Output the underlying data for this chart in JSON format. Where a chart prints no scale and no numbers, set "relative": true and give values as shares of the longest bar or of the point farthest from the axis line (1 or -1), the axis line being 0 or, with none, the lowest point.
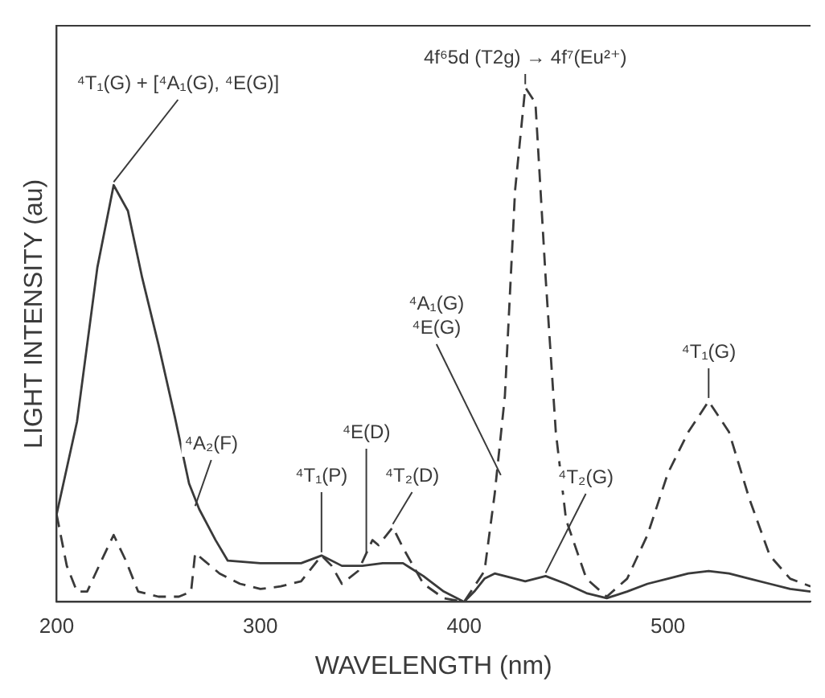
{
  "chart_data": {
    "type": "line",
    "xlabel": "WAVELENGTH (nm)",
    "ylabel": "LIGHT INTENSITY (au)",
    "relative": true,
    "xlim": [
      200,
      570
    ],
    "xticks": [
      200,
      300,
      400,
      500
    ],
    "grid": false,
    "legend": false,
    "marker": "none",
    "series": [
      {
        "color": "#3a3a3a",
        "line_style": "solid",
        "x": [
          200,
          210,
          220,
          228,
          235,
          242,
          250,
          258,
          265,
          270,
          278,
          284,
          300,
          320,
          330,
          340,
          350,
          360,
          370,
          380,
          390,
          400,
          405,
          410,
          415,
          420,
          430,
          440,
          450,
          460,
          470,
          480,
          490,
          500,
          510,
          520,
          530,
          540,
          550,
          560,
          570
        ],
        "values": [
          0.17,
          0.35,
          0.65,
          0.81,
          0.76,
          0.63,
          0.5,
          0.36,
          0.23,
          0.18,
          0.12,
          0.08,
          0.075,
          0.075,
          0.09,
          0.07,
          0.07,
          0.075,
          0.075,
          0.05,
          0.02,
          0.0,
          0.02,
          0.045,
          0.055,
          0.05,
          0.04,
          0.05,
          0.035,
          0.017,
          0.007,
          0.02,
          0.035,
          0.045,
          0.055,
          0.06,
          0.055,
          0.045,
          0.035,
          0.025,
          0.02
        ]
      },
      {
        "color": "#3a3a3a",
        "line_style": "dashed",
        "x": [
          200,
          205,
          210,
          215,
          222,
          228,
          234,
          240,
          250,
          260,
          266,
          268,
          280,
          290,
          300,
          310,
          320,
          330,
          335,
          340,
          348,
          355,
          358,
          365,
          370,
          380,
          390,
          400,
          410,
          415,
          420,
          425,
          430,
          435,
          440,
          445,
          450,
          460,
          470,
          480,
          490,
          500,
          510,
          520,
          530,
          540,
          550,
          560,
          570
        ],
        "values": [
          0.17,
          0.07,
          0.02,
          0.02,
          0.08,
          0.13,
          0.08,
          0.02,
          0.01,
          0.01,
          0.02,
          0.095,
          0.055,
          0.035,
          0.025,
          0.03,
          0.04,
          0.09,
          0.07,
          0.035,
          0.06,
          0.12,
          0.11,
          0.145,
          0.105,
          0.035,
          0.007,
          0.0,
          0.06,
          0.21,
          0.4,
          0.8,
          1.0,
          0.97,
          0.63,
          0.33,
          0.16,
          0.045,
          0.01,
          0.045,
          0.13,
          0.25,
          0.33,
          0.39,
          0.33,
          0.2,
          0.09,
          0.045,
          0.03
        ]
      }
    ],
    "annotations": [
      {
        "text": "⁴T₁(G) + [⁴A₁(G), ⁴E(G)]",
        "x": 228,
        "y": 0.81
      },
      {
        "text": "⁴A₂(F)",
        "x": 268,
        "y": 0.18
      },
      {
        "text": "⁴T₁(P)",
        "x": 330,
        "y": 0.09
      },
      {
        "text": "⁴E(D)",
        "x": 352,
        "y": 0.09
      },
      {
        "text": "⁴T₂(D)",
        "x": 365,
        "y": 0.145
      },
      {
        "text": "⁴A₁(G)\n⁴E(G)",
        "x": 418,
        "y": 0.24
      },
      {
        "text": "⁴T₂(G)",
        "x": 440,
        "y": 0.05
      },
      {
        "text": "4f⁶5d (T2g) → 4f⁷(Eu²⁺)",
        "x": 430,
        "y": 1.0
      },
      {
        "text": "⁴T₁(G)",
        "x": 520,
        "y": 0.39
      }
    ]
  }
}
